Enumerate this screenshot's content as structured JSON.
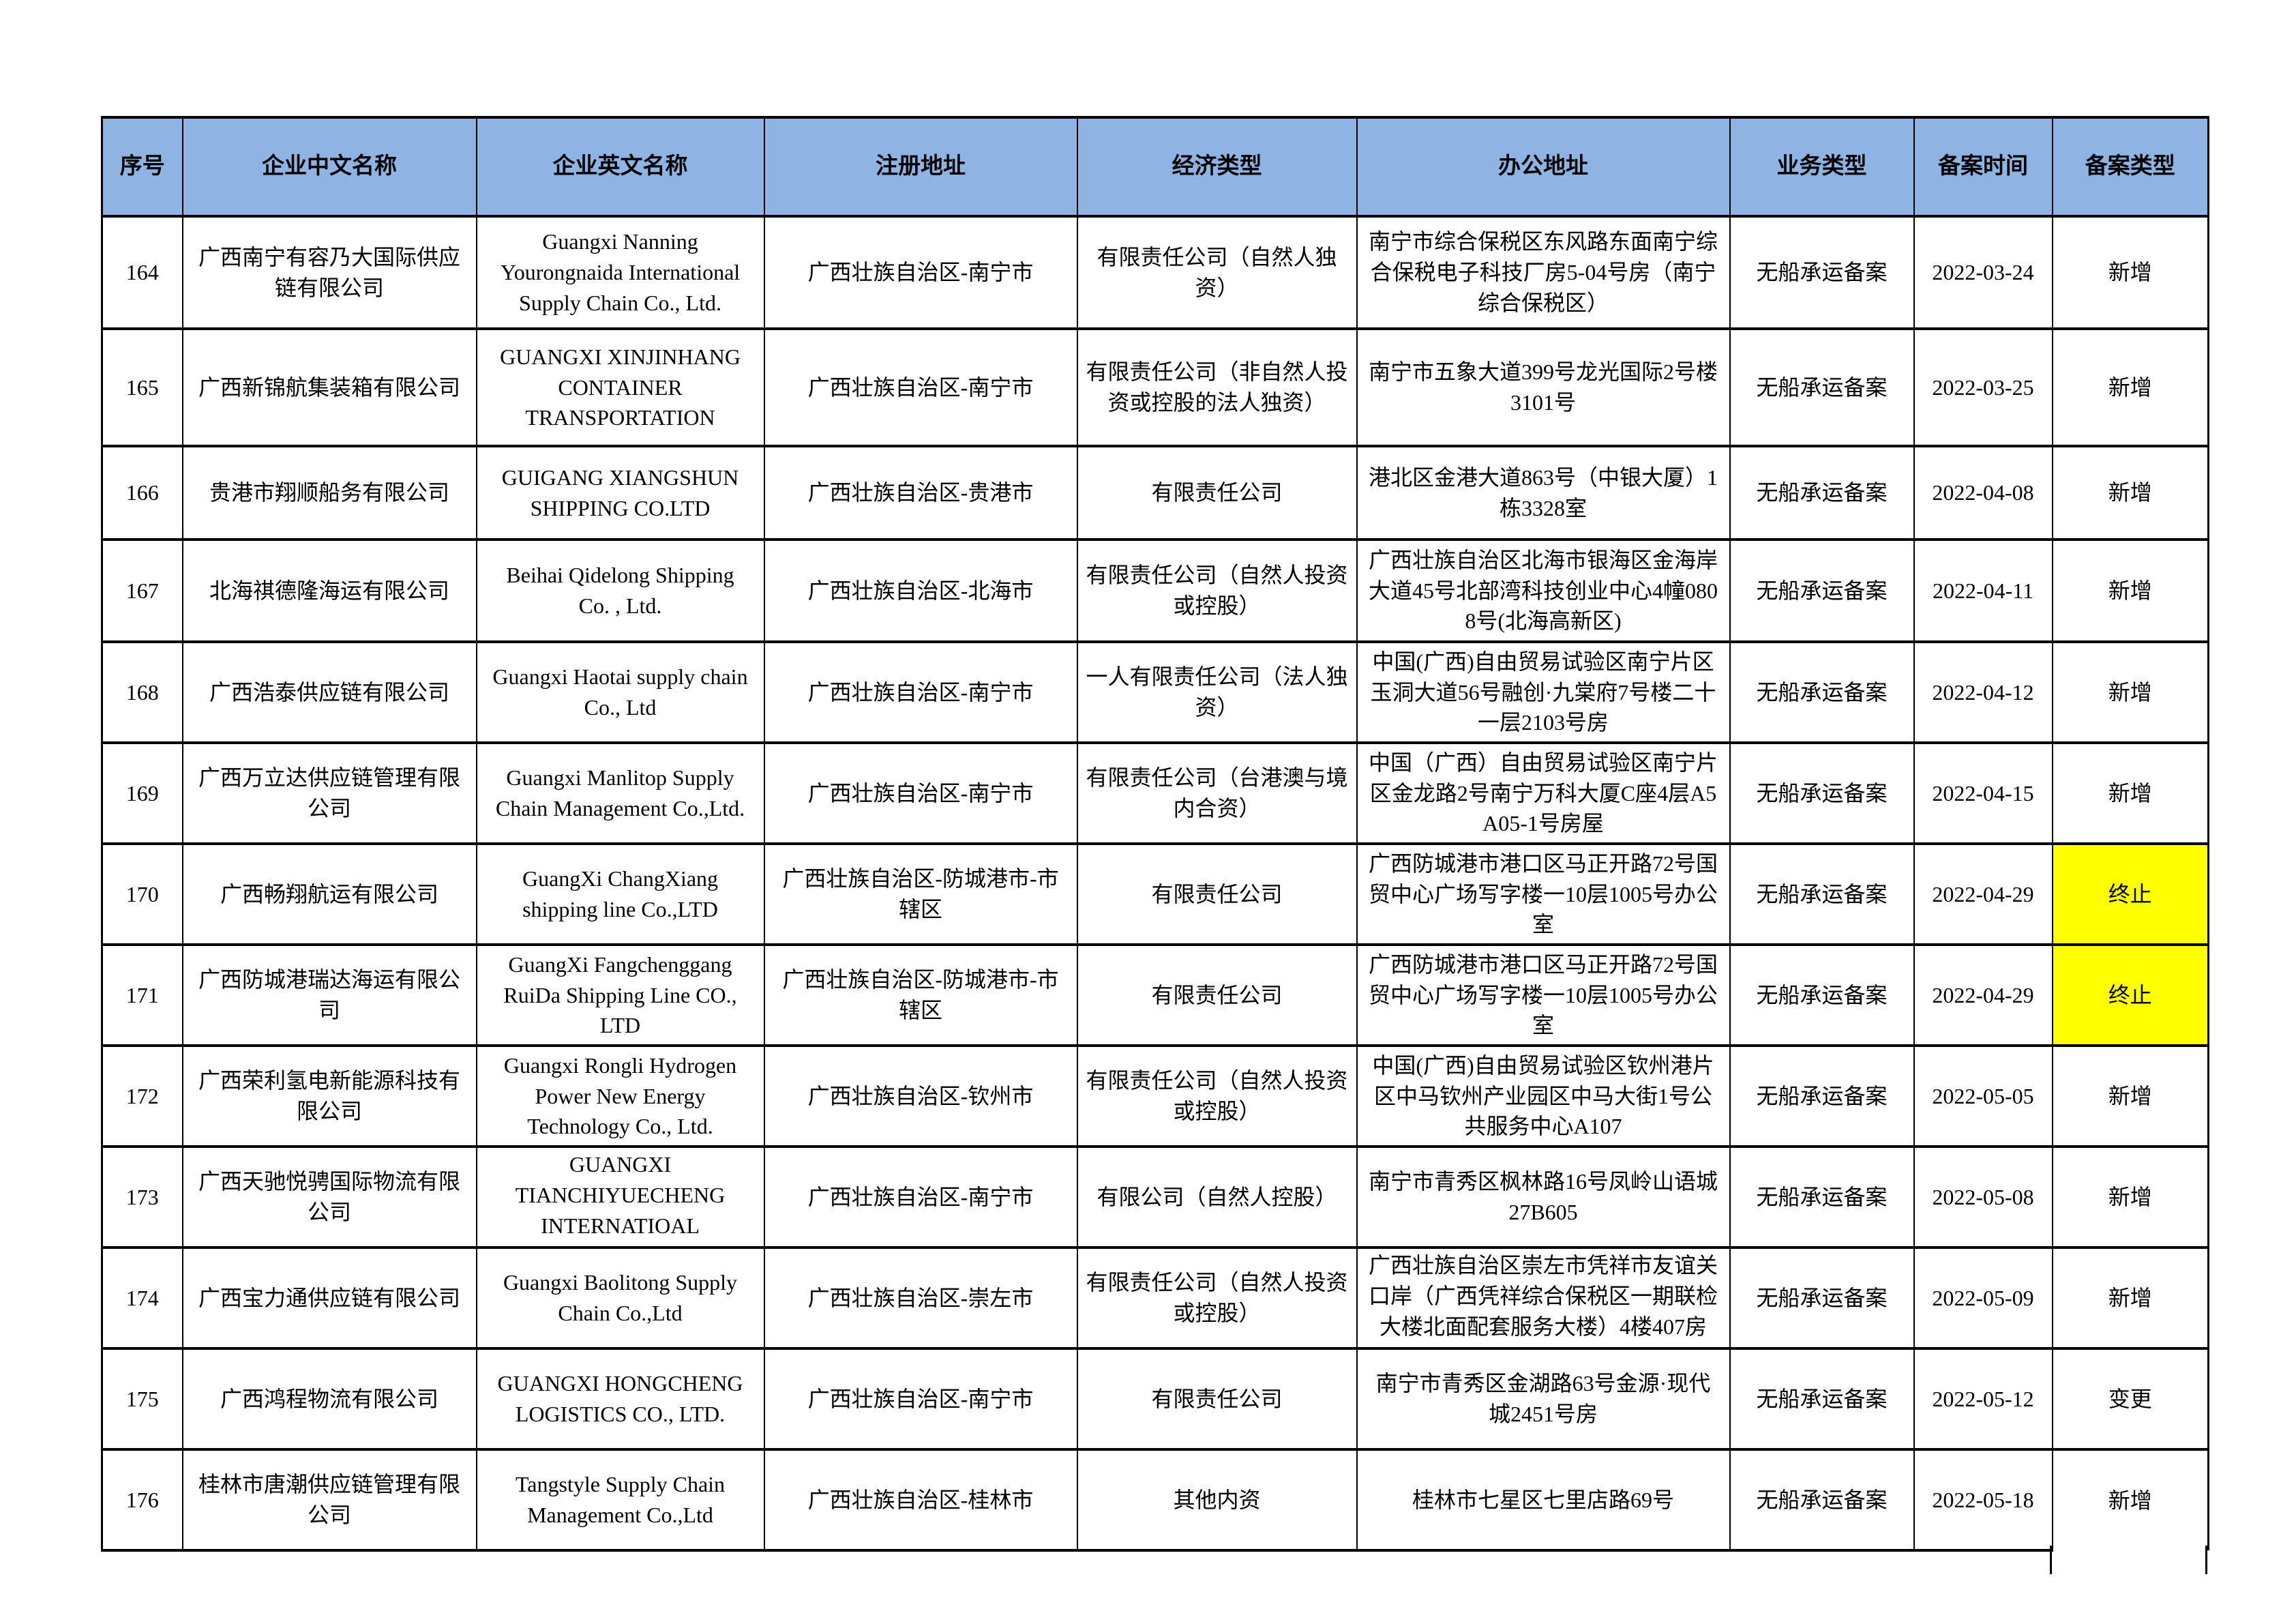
{
  "colors": {
    "header_bg": "#8db4e2",
    "highlight": "#ffff00",
    "border": "#000000",
    "page_bg": "#ffffff"
  },
  "table": {
    "columns": [
      {
        "key": "index",
        "label": "序号"
      },
      {
        "key": "cn_name",
        "label": "企业中文名称"
      },
      {
        "key": "en_name",
        "label": "企业英文名称"
      },
      {
        "key": "reg_addr",
        "label": "注册地址"
      },
      {
        "key": "econ_type",
        "label": "经济类型"
      },
      {
        "key": "office_addr",
        "label": "办公地址"
      },
      {
        "key": "biz_type",
        "label": "业务类型"
      },
      {
        "key": "record_date",
        "label": "备案时间"
      },
      {
        "key": "record_type",
        "label": "备案类型"
      }
    ],
    "rows": [
      {
        "index": "164",
        "cn_name": "广西南宁有容乃大国际供应链有限公司",
        "en_name": "Guangxi Nanning\nYourongnaida International\nSupply Chain Co., Ltd.",
        "reg_addr": "广西壮族自治区-南宁市",
        "econ_type": "有限责任公司（自然人独资）",
        "office_addr": "南宁市综合保税区东风路东面南宁综合保税电子科技厂房5-04号房（南宁综合保税区）",
        "biz_type": "无船承运备案",
        "record_date": "2022-03-24",
        "record_type": "新增",
        "highlight": false
      },
      {
        "index": "165",
        "cn_name": "广西新锦航集装箱有限公司",
        "en_name": "GUANGXI XINJINHANG\nCONTAINER\nTRANSPORTATION",
        "reg_addr": "广西壮族自治区-南宁市",
        "econ_type": "有限责任公司（非自然人投资或控股的法人独资）",
        "office_addr": "南宁市五象大道399号龙光国际2号楼3101号",
        "biz_type": "无船承运备案",
        "record_date": "2022-03-25",
        "record_type": "新增",
        "highlight": false
      },
      {
        "index": "166",
        "cn_name": "贵港市翔顺船务有限公司",
        "en_name": "GUIGANG XIANGSHUN\nSHIPPING CO.LTD",
        "reg_addr": "广西壮族自治区-贵港市",
        "econ_type": "有限责任公司",
        "office_addr": "港北区金港大道863号（中银大厦）1栋3328室",
        "biz_type": "无船承运备案",
        "record_date": "2022-04-08",
        "record_type": "新增",
        "highlight": false
      },
      {
        "index": "167",
        "cn_name": "北海祺德隆海运有限公司",
        "en_name": "Beihai Qidelong Shipping\nCo. , Ltd.",
        "reg_addr": "广西壮族自治区-北海市",
        "econ_type": "有限责任公司（自然人投资或控股）",
        "office_addr": "广西壮族自治区北海市银海区金海岸大道45号北部湾科技创业中心4幢0808号(北海高新区)",
        "biz_type": "无船承运备案",
        "record_date": "2022-04-11",
        "record_type": "新增",
        "highlight": false
      },
      {
        "index": "168",
        "cn_name": "广西浩泰供应链有限公司",
        "en_name": "Guangxi Haotai supply chain\nCo., Ltd",
        "reg_addr": "广西壮族自治区-南宁市",
        "econ_type": "一人有限责任公司（法人独资）",
        "office_addr": "中国(广西)自由贸易试验区南宁片区玉洞大道56号融创·九棠府7号楼二十一层2103号房",
        "biz_type": "无船承运备案",
        "record_date": "2022-04-12",
        "record_type": "新增",
        "highlight": false
      },
      {
        "index": "169",
        "cn_name": "广西万立达供应链管理有限公司",
        "en_name": "Guangxi Manlitop Supply\nChain Management Co.,Ltd.",
        "reg_addr": "广西壮族自治区-南宁市",
        "econ_type": "有限责任公司（台港澳与境内合资）",
        "office_addr": "中国（广西）自由贸易试验区南宁片区金龙路2号南宁万科大厦C座4层A5A05-1号房屋",
        "biz_type": "无船承运备案",
        "record_date": "2022-04-15",
        "record_type": "新增",
        "highlight": false
      },
      {
        "index": "170",
        "cn_name": "广西畅翔航运有限公司",
        "en_name": "GuangXi ChangXiang\nshipping line Co.,LTD",
        "reg_addr": "广西壮族自治区-防城港市-市辖区",
        "econ_type": "有限责任公司",
        "office_addr": "广西防城港市港口区马正开路72号国贸中心广场写字楼一10层1005号办公室",
        "biz_type": "无船承运备案",
        "record_date": "2022-04-29",
        "record_type": "终止",
        "highlight": true
      },
      {
        "index": "171",
        "cn_name": "广西防城港瑞达海运有限公司",
        "en_name": "GuangXi Fangchenggang\nRuiDa Shipping Line CO.,\nLTD",
        "reg_addr": "广西壮族自治区-防城港市-市辖区",
        "econ_type": "有限责任公司",
        "office_addr": "广西防城港市港口区马正开路72号国贸中心广场写字楼一10层1005号办公室",
        "biz_type": "无船承运备案",
        "record_date": "2022-04-29",
        "record_type": "终止",
        "highlight": true
      },
      {
        "index": "172",
        "cn_name": "广西荣利氢电新能源科技有限公司",
        "en_name": "Guangxi Rongli Hydrogen\nPower New Energy\nTechnology Co., Ltd.",
        "reg_addr": "广西壮族自治区-钦州市",
        "econ_type": "有限责任公司（自然人投资或控股）",
        "office_addr": "中国(广西)自由贸易试验区钦州港片区中马钦州产业园区中马大街1号公共服务中心A107",
        "biz_type": "无船承运备案",
        "record_date": "2022-05-05",
        "record_type": "新增",
        "highlight": false
      },
      {
        "index": "173",
        "cn_name": "广西天驰悦骋国际物流有限公司",
        "en_name": "GUANGXI\nTIANCHIYUECHENG\nINTERNATIOAL\nLOGISTICS CO.,LTD",
        "clip_en": true,
        "reg_addr": "广西壮族自治区-南宁市",
        "econ_type": "有限公司（自然人控股）",
        "office_addr": "南宁市青秀区枫林路16号凤岭山语城27B605",
        "biz_type": "无船承运备案",
        "record_date": "2022-05-08",
        "record_type": "新增",
        "highlight": false
      },
      {
        "index": "174",
        "cn_name": "广西宝力通供应链有限公司",
        "en_name": "Guangxi Baolitong Supply\nChain  Co.,Ltd",
        "reg_addr": "广西壮族自治区-崇左市",
        "econ_type": "有限责任公司（自然人投资或控股）",
        "office_addr": "广西壮族自治区崇左市凭祥市友谊关口岸（广西凭祥综合保税区一期联检大楼北面配套服务大楼）4楼407房",
        "clip_office": true,
        "biz_type": "无船承运备案",
        "record_date": "2022-05-09",
        "record_type": "新增",
        "highlight": false
      },
      {
        "index": "175",
        "cn_name": "广西鸿程物流有限公司",
        "en_name": "GUANGXI HONGCHENG\nLOGISTICS CO., LTD.",
        "reg_addr": "广西壮族自治区-南宁市",
        "econ_type": "有限责任公司",
        "office_addr": "南宁市青秀区金湖路63号金源·现代城2451号房",
        "biz_type": "无船承运备案",
        "record_date": "2022-05-12",
        "record_type": "变更",
        "highlight": false
      },
      {
        "index": "176",
        "cn_name": "桂林市唐潮供应链管理有限公司",
        "en_name": "Tangstyle Supply Chain\nManagement Co.,Ltd",
        "reg_addr": "广西壮族自治区-桂林市",
        "econ_type": "其他内资",
        "office_addr": "桂林市七星区七里店路69号",
        "biz_type": "无船承运备案",
        "record_date": "2022-05-18",
        "record_type": "新增",
        "highlight": false
      }
    ]
  }
}
